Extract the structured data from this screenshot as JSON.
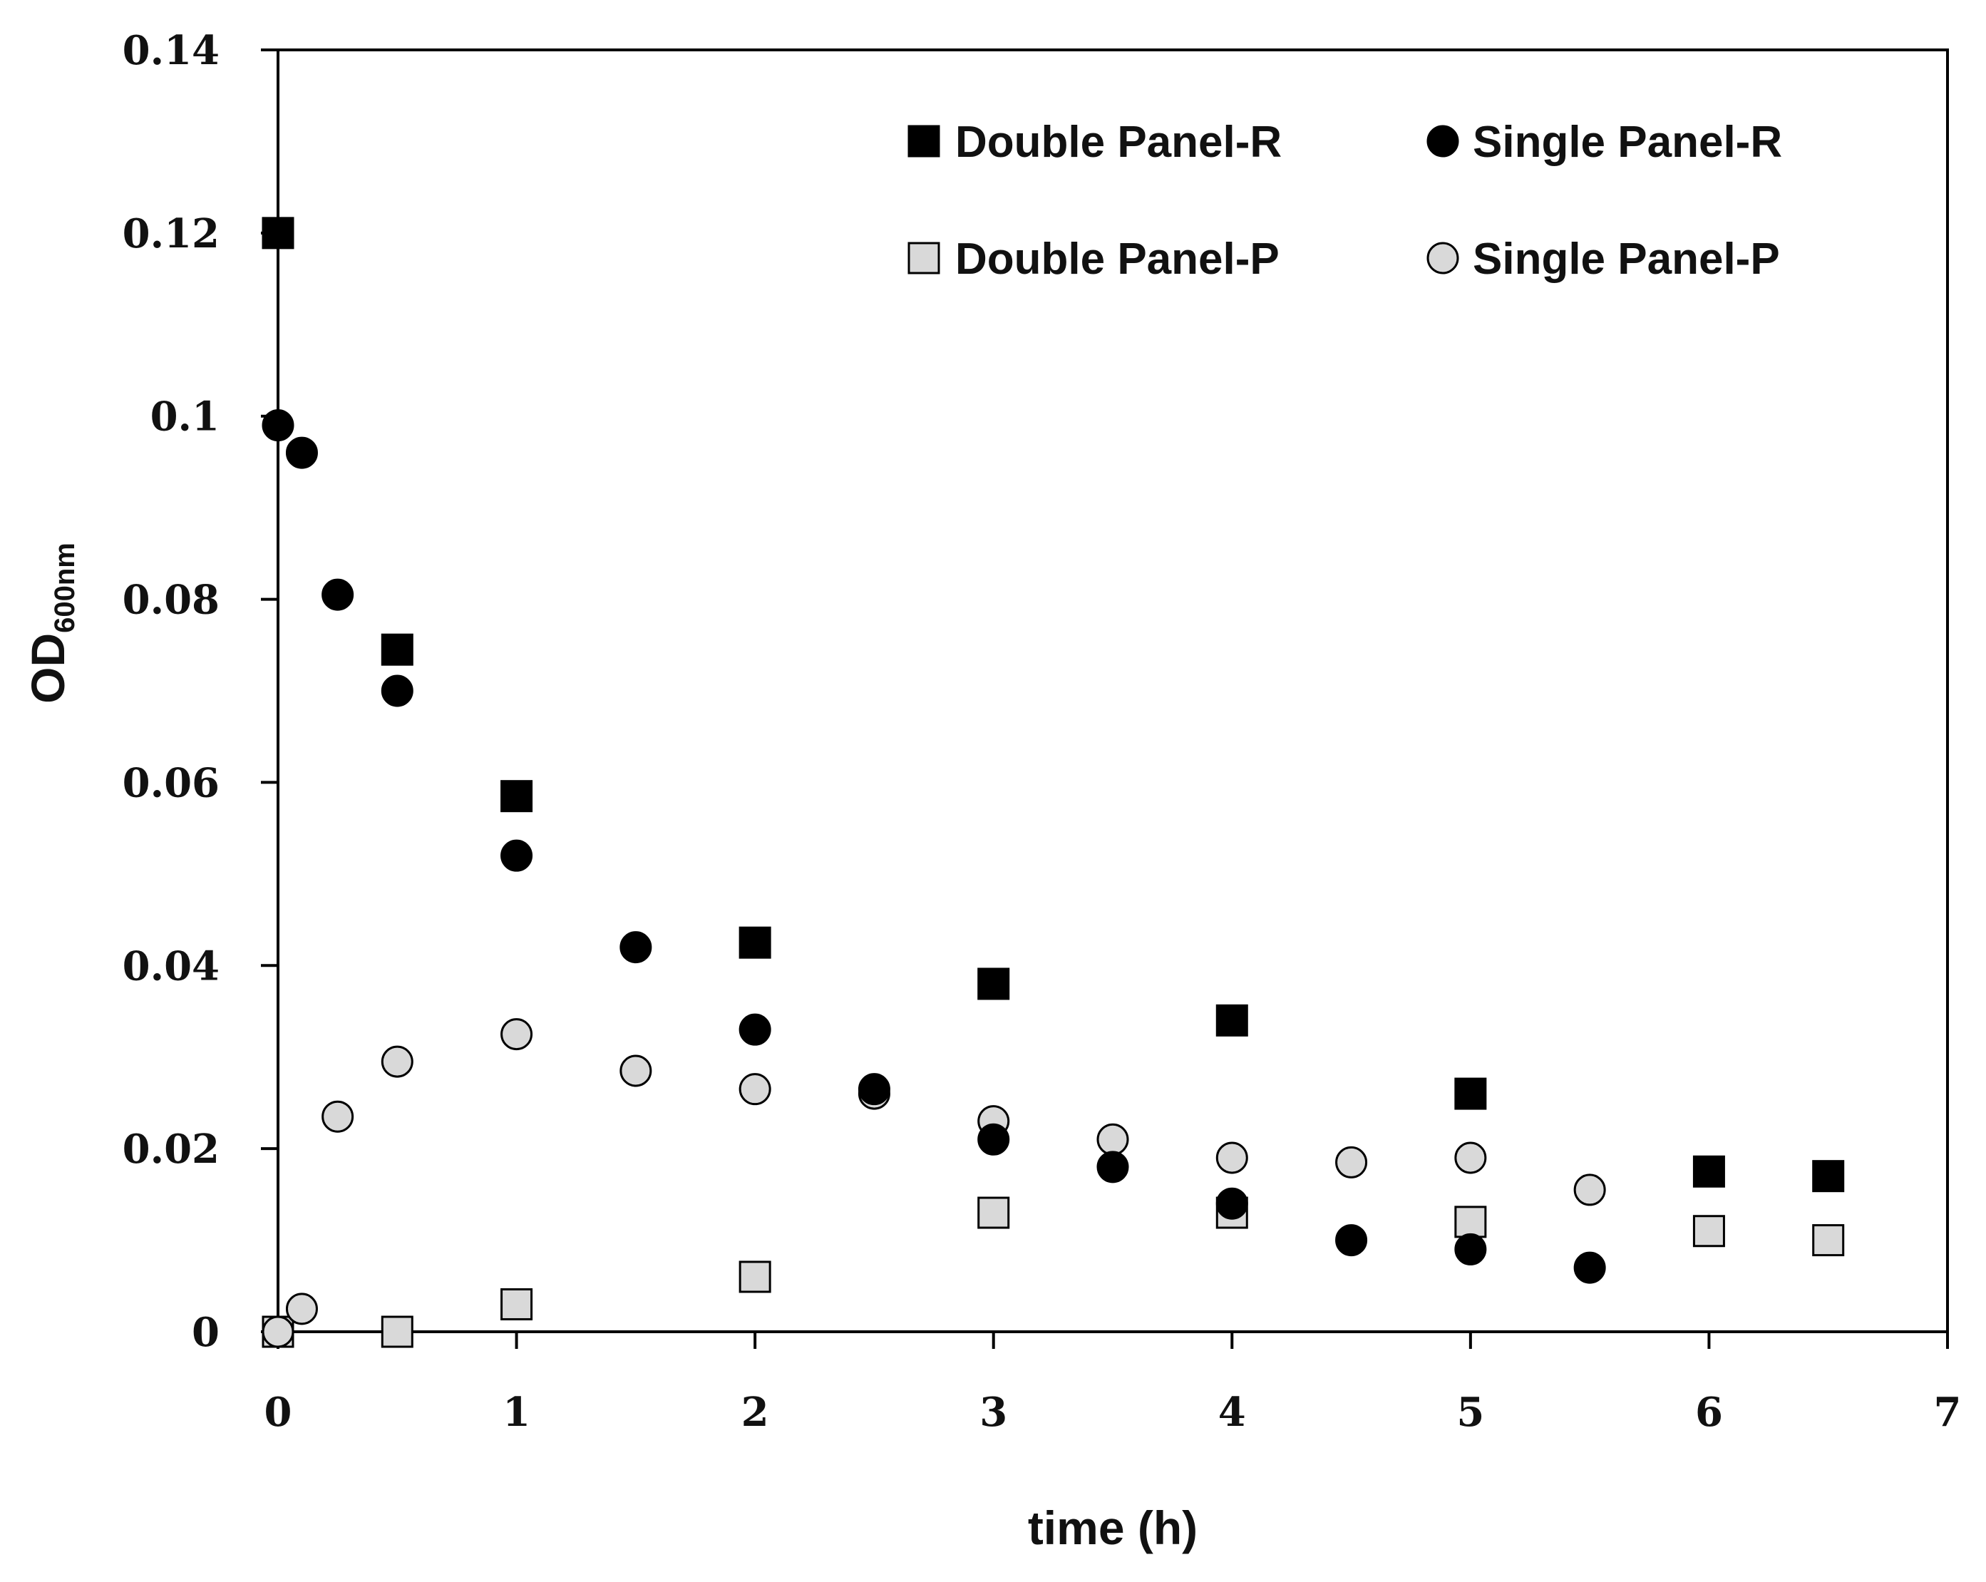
{
  "chart_data": {
    "type": "scatter",
    "title": "",
    "xlabel": "time (h)",
    "ylabel": "OD",
    "ylabel_subscript": "600nm",
    "xlim": [
      0,
      7
    ],
    "ylim": [
      0,
      0.14
    ],
    "x_ticks": [
      "0",
      "1",
      "2",
      "3",
      "4",
      "5",
      "6",
      "7"
    ],
    "y_ticks": [
      "0",
      "0.02",
      "0.04",
      "0.06",
      "0.08",
      "0.1",
      "0.12",
      "0.14"
    ],
    "grid": false,
    "legend_position": "top-right",
    "series": [
      {
        "name": "Double Panel-R",
        "marker": "square",
        "fill": "#000000",
        "points": [
          [
            0,
            0.12
          ],
          [
            0.5,
            0.0745
          ],
          [
            1,
            0.0585
          ],
          [
            2,
            0.0425
          ],
          [
            3,
            0.038
          ],
          [
            4,
            0.034
          ],
          [
            5,
            0.026
          ],
          [
            6,
            0.0175
          ],
          [
            6.5,
            0.017
          ]
        ]
      },
      {
        "name": "Single Panel-R",
        "marker": "circle",
        "fill": "#000000",
        "points": [
          [
            0,
            0.099
          ],
          [
            0.1,
            0.096
          ],
          [
            0.25,
            0.0805
          ],
          [
            0.5,
            0.07
          ],
          [
            1,
            0.052
          ],
          [
            1.5,
            0.042
          ],
          [
            2,
            0.033
          ],
          [
            2.5,
            0.0265
          ],
          [
            3,
            0.021
          ],
          [
            3.5,
            0.018
          ],
          [
            4,
            0.014
          ],
          [
            4.5,
            0.01
          ],
          [
            5,
            0.009
          ],
          [
            5.5,
            0.007
          ]
        ]
      },
      {
        "name": "Double Panel-P",
        "marker": "square",
        "fill": "#d9d9d9",
        "points": [
          [
            0,
            0.0
          ],
          [
            0.5,
            0.0
          ],
          [
            1,
            0.003
          ],
          [
            2,
            0.006
          ],
          [
            3,
            0.013
          ],
          [
            4,
            0.013
          ],
          [
            5,
            0.012
          ],
          [
            6,
            0.011
          ],
          [
            6.5,
            0.01
          ]
        ]
      },
      {
        "name": "Single Panel-P",
        "marker": "circle",
        "fill": "#d9d9d9",
        "points": [
          [
            0,
            0.0
          ],
          [
            0.1,
            0.0025
          ],
          [
            0.25,
            0.0235
          ],
          [
            0.5,
            0.0295
          ],
          [
            1,
            0.0325
          ],
          [
            1.5,
            0.0285
          ],
          [
            2,
            0.0265
          ],
          [
            2.5,
            0.026
          ],
          [
            3,
            0.023
          ],
          [
            3.5,
            0.021
          ],
          [
            4,
            0.019
          ],
          [
            4.5,
            0.0185
          ],
          [
            5,
            0.019
          ],
          [
            5.5,
            0.0155
          ]
        ]
      }
    ]
  }
}
